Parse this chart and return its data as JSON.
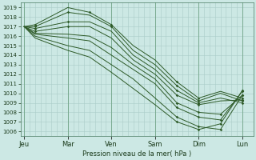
{
  "xlabel": "Pression niveau de la mer( hPa )",
  "background_color": "#cce8e4",
  "plot_bg_color": "#cce8e4",
  "grid_major_color": "#aaccc8",
  "grid_minor_color": "#bcdad6",
  "line_color": "#2d5a27",
  "ylim": [
    1005.5,
    1019.5
  ],
  "yticks": [
    1006,
    1007,
    1008,
    1009,
    1010,
    1011,
    1012,
    1013,
    1014,
    1015,
    1016,
    1017,
    1018,
    1019
  ],
  "xtick_labels": [
    "Jeu",
    "Mar",
    "Ven",
    "Sam",
    "Dim",
    "Lun"
  ],
  "xtick_positions": [
    0,
    24,
    48,
    72,
    96,
    120
  ],
  "xlim": [
    -2,
    126
  ],
  "figsize": [
    3.2,
    2.0
  ],
  "dpi": 100,
  "minor_xticks_per_day": 8,
  "hours_per_day": 24,
  "series": [
    {
      "x": [
        0,
        6,
        24,
        36,
        48,
        60,
        72,
        84,
        96,
        108,
        120
      ],
      "y": [
        1017.0,
        1017.2,
        1019.0,
        1018.5,
        1017.2,
        1015.0,
        1013.5,
        1011.2,
        1009.5,
        1010.2,
        1009.5
      ]
    },
    {
      "x": [
        0,
        6,
        24,
        36,
        48,
        60,
        72,
        84,
        96,
        108,
        120
      ],
      "y": [
        1017.0,
        1017.0,
        1018.5,
        1018.2,
        1017.0,
        1014.5,
        1013.0,
        1010.8,
        1009.2,
        1010.0,
        1009.2
      ]
    },
    {
      "x": [
        0,
        6,
        24,
        36,
        48,
        60,
        72,
        84,
        96,
        108,
        120
      ],
      "y": [
        1017.0,
        1016.8,
        1017.5,
        1017.5,
        1016.5,
        1014.0,
        1012.5,
        1010.3,
        1009.0,
        1009.5,
        1009.0
      ]
    },
    {
      "x": [
        0,
        6,
        24,
        36,
        48,
        60,
        72,
        84,
        96,
        108,
        120
      ],
      "y": [
        1017.0,
        1016.5,
        1017.0,
        1017.0,
        1015.8,
        1013.5,
        1012.0,
        1009.8,
        1008.8,
        1009.2,
        1009.3
      ]
    },
    {
      "x": [
        0,
        6,
        24,
        36,
        48,
        60,
        72,
        84,
        96,
        108,
        120
      ],
      "y": [
        1017.0,
        1016.3,
        1016.2,
        1016.0,
        1014.8,
        1013.0,
        1011.5,
        1009.0,
        1008.0,
        1007.8,
        1009.8
      ]
    },
    {
      "x": [
        0,
        6,
        24,
        36,
        48,
        60,
        72,
        84,
        96,
        108,
        120
      ],
      "y": [
        1017.0,
        1016.2,
        1015.8,
        1015.5,
        1014.0,
        1012.5,
        1011.0,
        1008.5,
        1007.5,
        1007.2,
        1010.2
      ]
    },
    {
      "x": [
        0,
        6,
        24,
        36,
        48,
        60,
        72,
        84,
        96,
        108,
        120
      ],
      "y": [
        1017.0,
        1016.0,
        1015.0,
        1014.5,
        1013.0,
        1011.5,
        1009.5,
        1007.5,
        1006.5,
        1006.2,
        1009.8
      ]
    },
    {
      "x": [
        0,
        6,
        24,
        36,
        48,
        60,
        72,
        84,
        96,
        108,
        120
      ],
      "y": [
        1017.0,
        1015.8,
        1014.5,
        1013.8,
        1012.2,
        1010.5,
        1008.8,
        1007.0,
        1006.2,
        1006.8,
        1010.3
      ]
    }
  ],
  "markers": [
    {
      "x": [
        6,
        36,
        48,
        84,
        96,
        120
      ],
      "y": [
        1017.2,
        1018.5,
        1017.2,
        1011.2,
        1009.5,
        1009.5
      ]
    },
    {
      "x": [
        6,
        24,
        48,
        84,
        96,
        120
      ],
      "y": [
        1017.0,
        1018.5,
        1017.0,
        1010.8,
        1009.2,
        1009.2
      ]
    },
    {
      "x": [
        6,
        24,
        84,
        96,
        120
      ],
      "y": [
        1016.8,
        1017.5,
        1010.3,
        1009.0,
        1009.0
      ]
    },
    {
      "x": [
        6,
        24,
        84,
        96,
        120
      ],
      "y": [
        1016.5,
        1017.0,
        1009.8,
        1008.8,
        1009.3
      ]
    },
    {
      "x": [
        84,
        96,
        108,
        120
      ],
      "y": [
        1009.0,
        1008.0,
        1007.8,
        1009.8
      ]
    },
    {
      "x": [
        84,
        96,
        108,
        120
      ],
      "y": [
        1008.5,
        1007.5,
        1007.2,
        1010.2
      ]
    },
    {
      "x": [
        84,
        96,
        108,
        120
      ],
      "y": [
        1007.5,
        1006.5,
        1006.2,
        1009.8
      ]
    },
    {
      "x": [
        84,
        96,
        108,
        120
      ],
      "y": [
        1007.0,
        1006.2,
        1006.8,
        1010.3
      ]
    }
  ]
}
